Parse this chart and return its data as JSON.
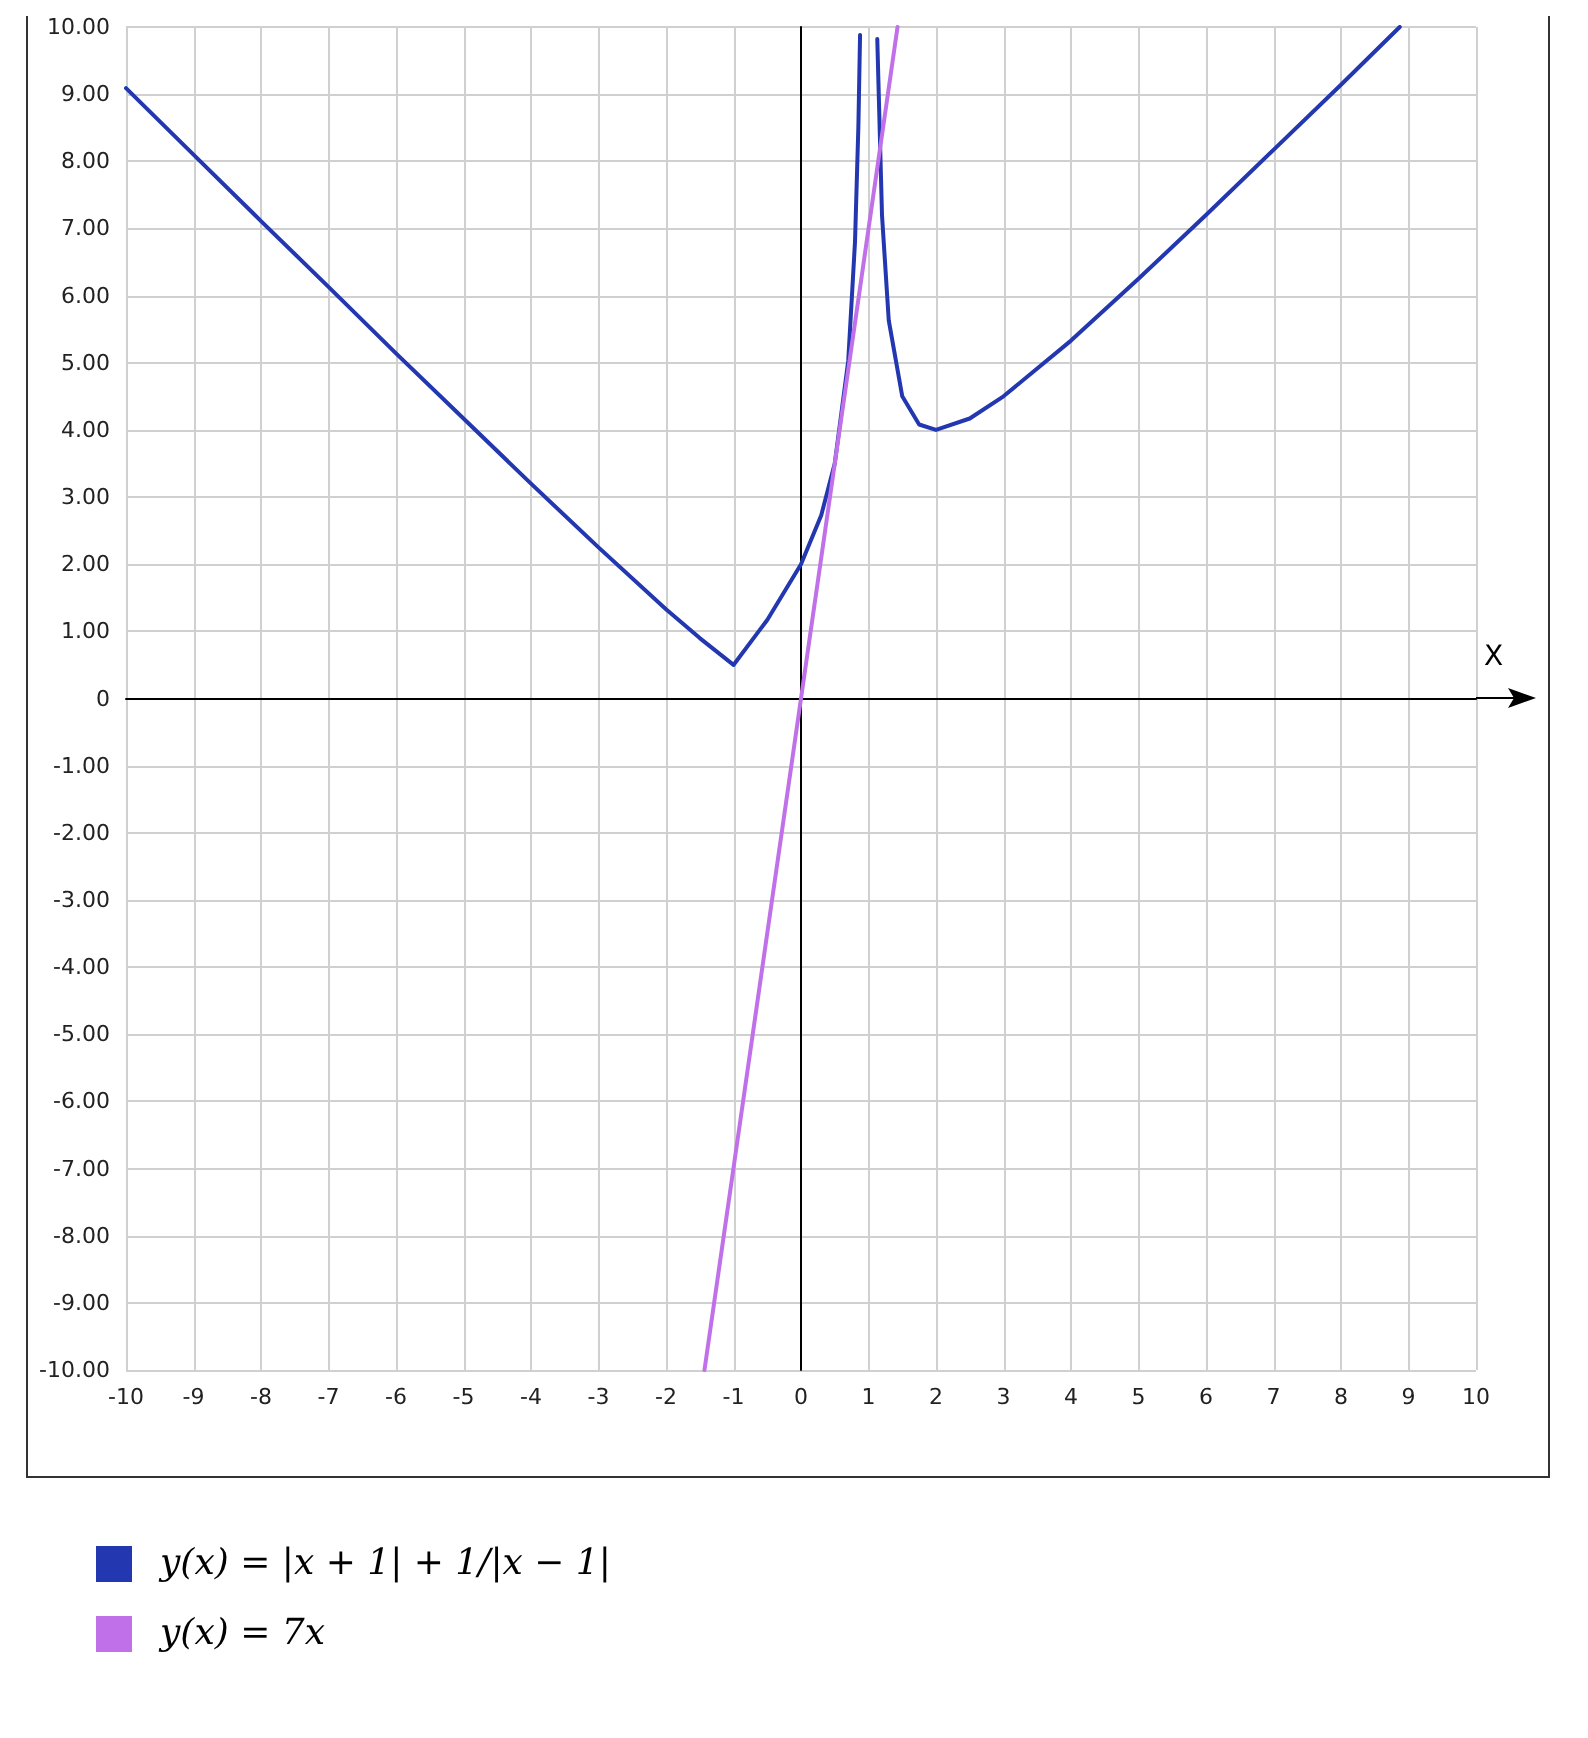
{
  "chart_data": {
    "type": "line",
    "xlabel": "X",
    "series": [
      {
        "name": "y(x) = |x + 1| + 1/|x − 1|",
        "color": "#2237b0",
        "x": [
          -10,
          -9,
          -8,
          -7,
          -6,
          -5,
          -4,
          -3,
          -2,
          -1.5,
          -1,
          -0.5,
          0,
          0.3,
          0.5,
          0.7,
          0.8,
          0.85,
          0.875,
          1,
          1.13,
          1.2,
          1.3,
          1.5,
          1.75,
          2,
          2.5,
          3,
          4,
          5,
          6,
          7,
          8,
          8.87
        ],
        "values": [
          9.09,
          8.1,
          7.11,
          6.13,
          5.14,
          4.17,
          3.2,
          2.25,
          1.33,
          0.9,
          0.5,
          1.17,
          2,
          2.73,
          3.5,
          5.03,
          6.8,
          8.52,
          9.88,
          null,
          9.82,
          7.2,
          5.63,
          4.5,
          4.08,
          4,
          4.17,
          4.5,
          5.33,
          6.25,
          7.2,
          8.17,
          9.14,
          10
        ]
      },
      {
        "name": "y(x) = 7x",
        "color": "#c070e8",
        "x": [
          -1.43,
          1.43
        ],
        "values": [
          -10,
          10
        ]
      }
    ],
    "xlim": [
      -10,
      10
    ],
    "xticks": [
      -10,
      -9,
      -8,
      -7,
      -6,
      -5,
      -4,
      -3,
      -2,
      -1,
      0,
      1,
      2,
      3,
      4,
      5,
      6,
      7,
      8,
      9,
      10
    ],
    "ylim": [
      -10,
      10
    ],
    "yticks": [
      {
        "value": -10,
        "label": "-10.00"
      },
      {
        "value": -9,
        "label": "-9.00"
      },
      {
        "value": -8,
        "label": "-8.00"
      },
      {
        "value": -7,
        "label": "-7.00"
      },
      {
        "value": -6,
        "label": "-6.00"
      },
      {
        "value": -5,
        "label": "-5.00"
      },
      {
        "value": -4,
        "label": "-4.00"
      },
      {
        "value": -3,
        "label": "-3.00"
      },
      {
        "value": -2,
        "label": "-2.00"
      },
      {
        "value": -1,
        "label": "-1.00"
      },
      0,
      {
        "value": 1,
        "label": "1.00"
      },
      {
        "value": 2,
        "label": "2.00"
      },
      {
        "value": 3,
        "label": "3.00"
      },
      {
        "value": 4,
        "label": "4.00"
      },
      {
        "value": 5,
        "label": "5.00"
      },
      {
        "value": 6,
        "label": "6.00"
      },
      {
        "value": 7,
        "label": "7.00"
      },
      {
        "value": 8,
        "label": "8.00"
      },
      {
        "value": 9,
        "label": "9.00"
      },
      {
        "value": 10,
        "label": "10.00"
      }
    ],
    "grid": true,
    "legend": "bottom",
    "marker": "none",
    "line_style": "solid"
  }
}
